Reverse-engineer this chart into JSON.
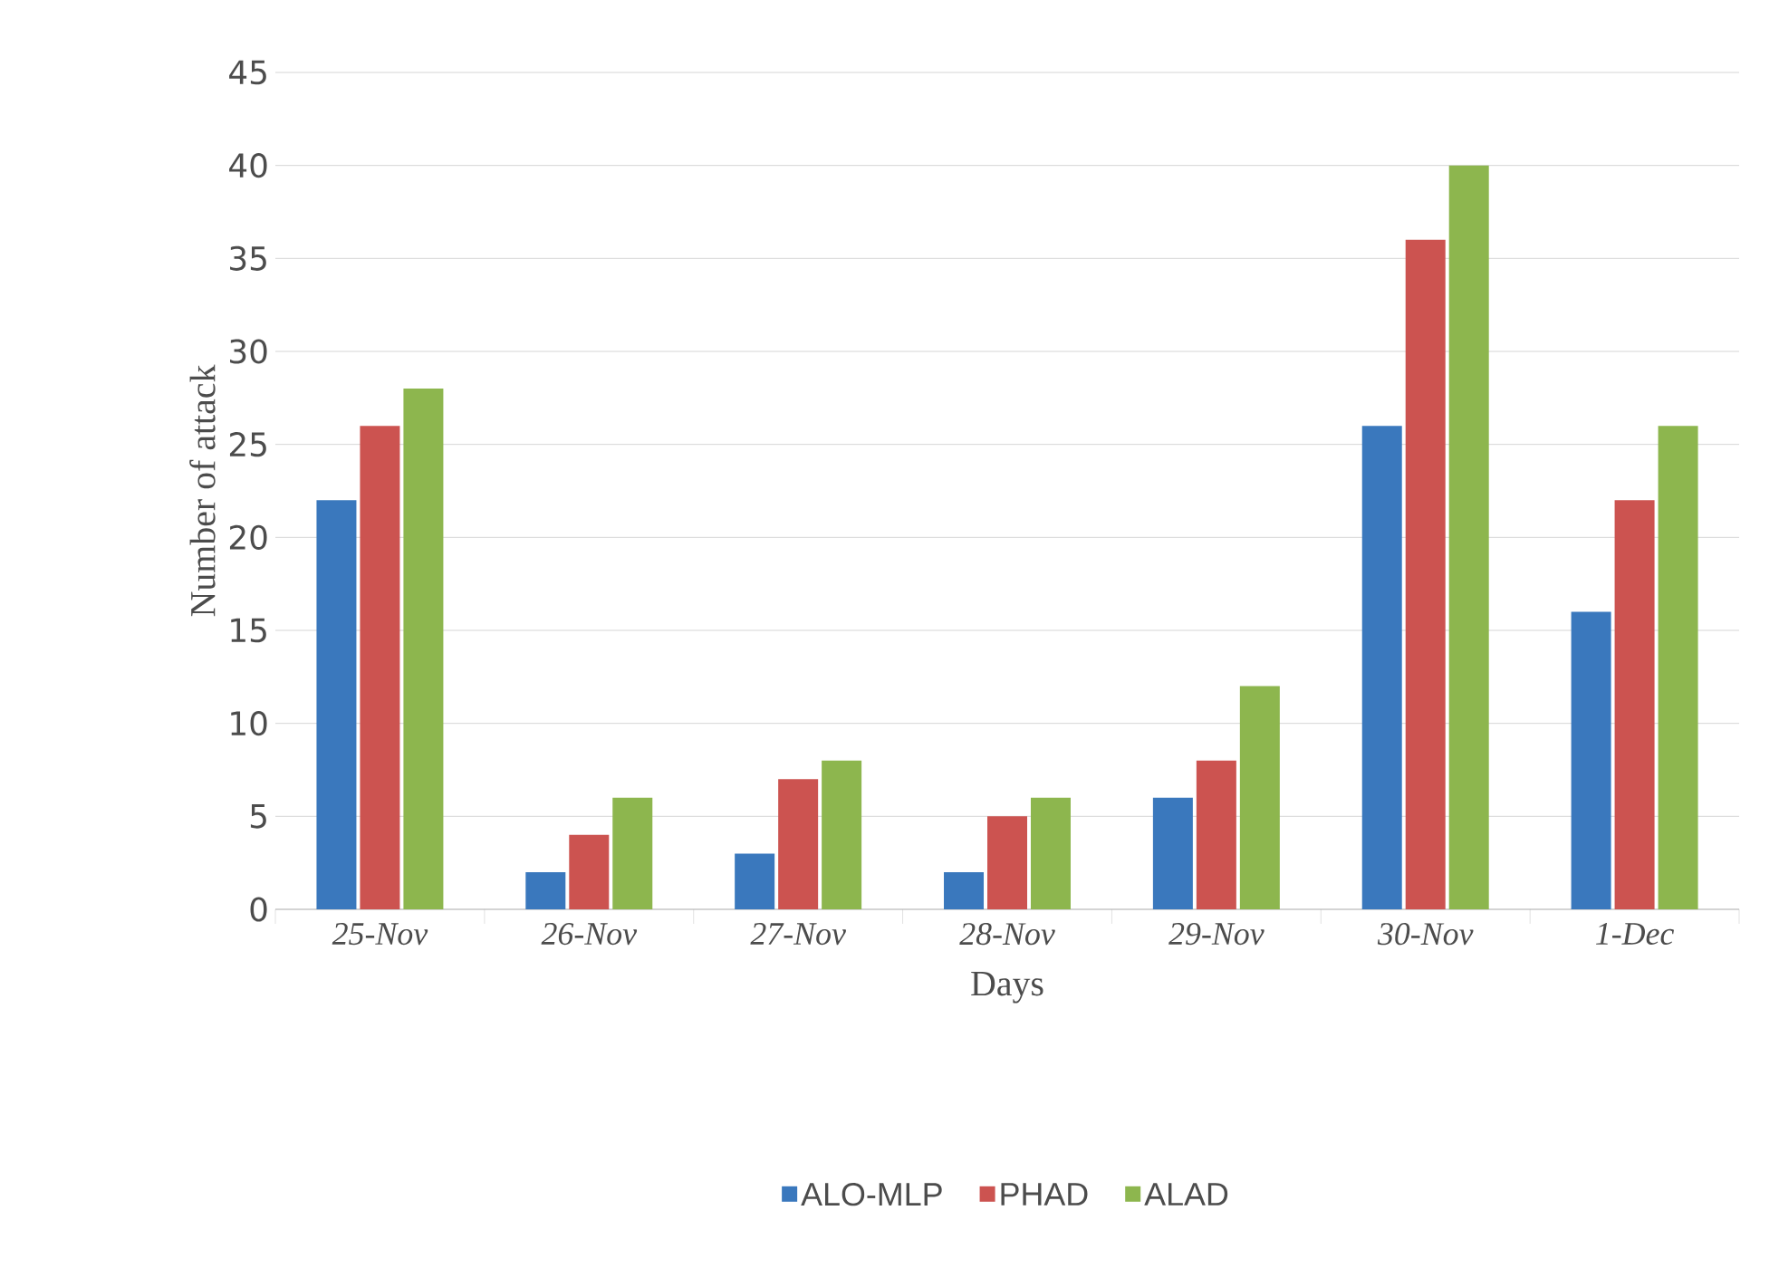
{
  "chart_data": {
    "type": "bar",
    "xlabel": "Days",
    "ylabel": "Number of attack",
    "categories": [
      "25-Nov",
      "26-Nov",
      "27-Nov",
      "28-Nov",
      "29-Nov",
      "30-Nov",
      "1-Dec"
    ],
    "series": [
      {
        "name": "ALO-MLP",
        "color": "#3a78bd",
        "values": [
          22,
          2,
          3,
          2,
          6,
          26,
          16
        ]
      },
      {
        "name": "PHAD",
        "color": "#cc5350",
        "values": [
          26,
          4,
          7,
          5,
          8,
          36,
          22
        ]
      },
      {
        "name": "ALAD",
        "color": "#8db64e",
        "values": [
          28,
          6,
          8,
          6,
          12,
          40,
          26
        ]
      }
    ],
    "ylim": [
      0,
      45
    ],
    "yticks": [
      0,
      5,
      10,
      15,
      20,
      25,
      30,
      35,
      40,
      45
    ],
    "grid": "y",
    "legend": "bottom"
  }
}
